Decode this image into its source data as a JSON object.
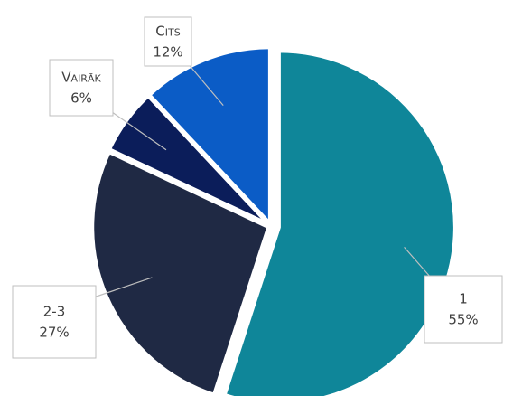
{
  "chart_data": {
    "type": "pie",
    "categories": [
      "1",
      "2-3",
      "Vairāk",
      "Cits"
    ],
    "values": [
      55,
      27,
      6,
      12
    ],
    "value_labels": [
      "55%",
      "27%",
      "6%",
      "12%"
    ],
    "colors": [
      "#0f8699",
      "#1f2944",
      "#0b1d5a",
      "#0b5cc6"
    ]
  }
}
